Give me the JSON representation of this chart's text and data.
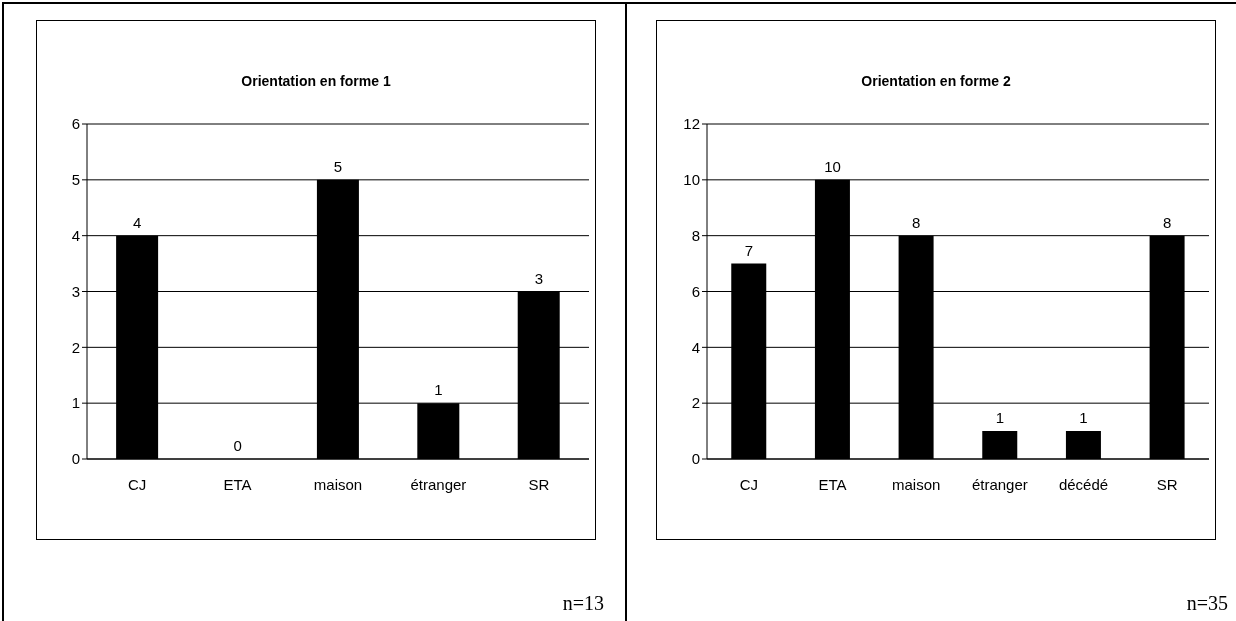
{
  "chart_data": [
    {
      "type": "bar",
      "title": "Orientation en forme 1",
      "categories": [
        "CJ",
        "ETA",
        "maison",
        "étranger",
        "SR"
      ],
      "values": [
        4,
        0,
        5,
        1,
        3
      ],
      "color": "#000000",
      "ylim": [
        0,
        6
      ],
      "yticks": [
        0,
        1,
        2,
        3,
        4,
        5,
        6
      ],
      "grid": "y",
      "data_labels": true,
      "annotations": [
        "n=13"
      ]
    },
    {
      "type": "bar",
      "title": "Orientation en forme 2",
      "categories": [
        "CJ",
        "ETA",
        "maison",
        "étranger",
        "décédé",
        "SR"
      ],
      "values": [
        7,
        10,
        8,
        1,
        1,
        8
      ],
      "color": "#000000",
      "ylim": [
        0,
        12
      ],
      "yticks": [
        0,
        2,
        4,
        6,
        8,
        10,
        12
      ],
      "grid": "y",
      "data_labels": true,
      "annotations": [
        "n=35"
      ]
    }
  ]
}
